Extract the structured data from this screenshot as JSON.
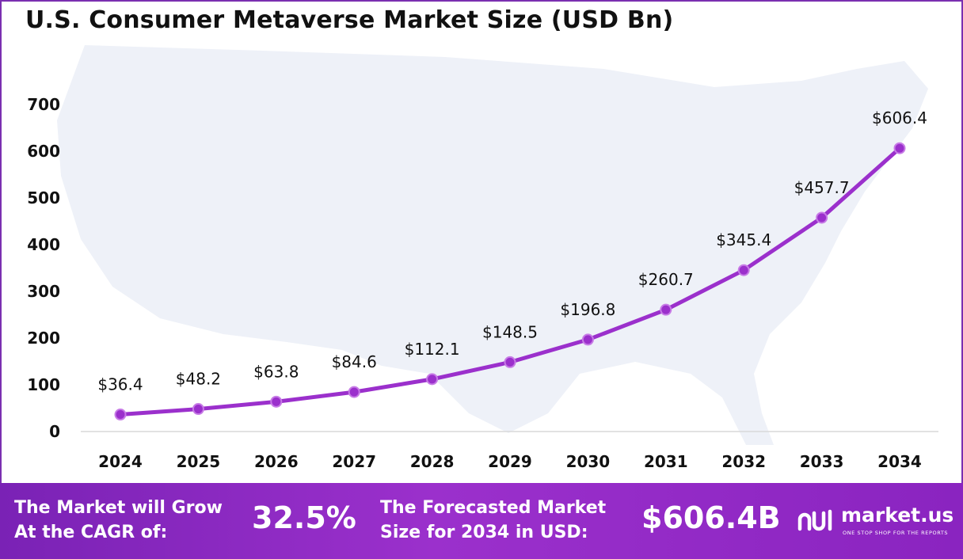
{
  "title": "U.S. Consumer Metaverse Market Size (USD Bn)",
  "chart_data": {
    "type": "line",
    "title": "U.S. Consumer Metaverse Market Size (USD Bn)",
    "categories": [
      "2024",
      "2025",
      "2026",
      "2027",
      "2028",
      "2029",
      "2030",
      "2031",
      "2032",
      "2033",
      "2034"
    ],
    "values": [
      36.4,
      48.2,
      63.8,
      84.6,
      112.1,
      148.5,
      196.8,
      260.7,
      345.4,
      457.7,
      606.4
    ],
    "data_labels": [
      "$36.4",
      "$48.2",
      "$63.8",
      "$84.6",
      "$112.1",
      "$148.5",
      "$196.8",
      "$260.7",
      "$345.4",
      "$457.7",
      "$606.4"
    ],
    "yticks": [
      "0",
      "100",
      "200",
      "300",
      "400",
      "500",
      "600",
      "700"
    ],
    "ylim": [
      0,
      700
    ],
    "xlabel": "",
    "ylabel": "",
    "grid": false,
    "line_color": "#9b30cc"
  },
  "footer": {
    "cagr_label_line1": "The Market will Grow",
    "cagr_label_line2": "At the CAGR of:",
    "cagr_value": "32.5%",
    "forecast_label_line1": "The Forecasted Market",
    "forecast_label_line2": "Size for 2034 in USD:",
    "forecast_value": "$606.4B",
    "brand_name": "market.us",
    "brand_tagline": "ONE STOP SHOP FOR THE REPORTS"
  }
}
